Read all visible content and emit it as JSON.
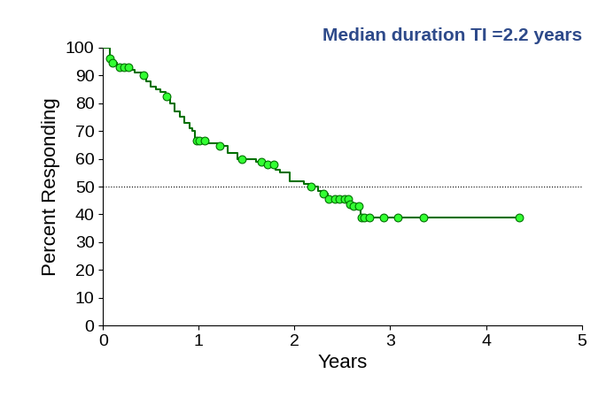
{
  "chart_data": {
    "type": "step",
    "title": "Median duration TI =2.2 years",
    "x_label": "Years",
    "y_label": "Percent Responding",
    "x": [
      0,
      0.07,
      0.09,
      0.15,
      0.3,
      0.33,
      0.4,
      0.45,
      0.5,
      0.55,
      0.6,
      0.65,
      0.7,
      0.75,
      0.8,
      0.85,
      0.9,
      0.93,
      0.96,
      0.98,
      1.1,
      1.2,
      1.3,
      1.4,
      1.6,
      1.7,
      1.8,
      1.85,
      1.95,
      2.1,
      2.15,
      2.25,
      2.3,
      2.35,
      2.57,
      2.6,
      2.69,
      4.35
    ],
    "values": [
      100,
      96,
      94.5,
      93,
      92,
      91,
      90,
      88,
      86,
      85,
      84,
      82.5,
      80,
      77,
      75,
      73,
      71,
      70,
      67,
      66.5,
      65.5,
      64.5,
      62,
      60,
      59,
      58,
      56,
      55,
      52,
      51,
      50,
      48.5,
      47.5,
      45.5,
      43.5,
      43,
      39,
      39
    ],
    "color": "#007000",
    "censored": {
      "x": [
        0.07,
        0.1,
        0.17,
        0.22,
        0.27,
        0.42,
        0.66,
        0.98,
        1.01,
        1.06,
        1.22,
        1.45,
        1.65,
        1.72,
        1.78,
        2.17,
        2.3,
        2.36,
        2.42,
        2.47,
        2.52,
        2.56,
        2.58,
        2.62,
        2.67,
        2.7,
        2.73,
        2.78,
        2.93,
        3.08,
        3.35,
        4.35
      ],
      "values": [
        96,
        94.5,
        93,
        93,
        93,
        90,
        82.5,
        66.5,
        66.5,
        66.5,
        64.5,
        60,
        59,
        58,
        58,
        50,
        47.5,
        45.5,
        45.5,
        45.5,
        45.5,
        45.5,
        43.5,
        43,
        43,
        39,
        39,
        39,
        39,
        39,
        39,
        39
      ],
      "color": "#33ff33",
      "marker": "o"
    },
    "reference_y": 50,
    "xlim": [
      0,
      5
    ],
    "xticks": [
      0,
      1,
      2,
      3,
      4,
      5
    ],
    "ylim": [
      0,
      100
    ],
    "yticks": [
      0,
      10,
      20,
      30,
      40,
      50,
      60,
      70,
      80,
      90,
      100
    ],
    "grid": false
  }
}
